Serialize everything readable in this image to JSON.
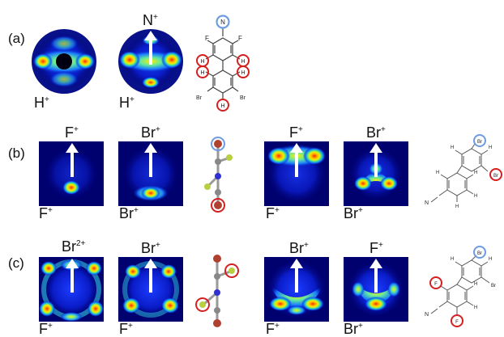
{
  "rows": [
    {
      "label": "(a)",
      "detected": [
        {
          "ion": "H",
          "charge": "+"
        },
        {
          "ion": "H",
          "charge": "+"
        }
      ],
      "reference": [
        {
          "ion": "",
          "charge": ""
        },
        {
          "ion": "N",
          "charge": "+"
        }
      ]
    },
    {
      "label": "(b)",
      "detected": [
        {
          "ion": "F",
          "charge": "+"
        },
        {
          "ion": "Br",
          "charge": "+"
        },
        {
          "ion": "F",
          "charge": "+"
        },
        {
          "ion": "Br",
          "charge": "+"
        }
      ],
      "reference": [
        {
          "ion": "F",
          "charge": "+"
        },
        {
          "ion": "Br",
          "charge": "+"
        },
        {
          "ion": "F",
          "charge": "+"
        },
        {
          "ion": "Br",
          "charge": "+"
        }
      ]
    },
    {
      "label": "(c)",
      "detected": [
        {
          "ion": "F",
          "charge": "+"
        },
        {
          "ion": "F",
          "charge": "+"
        },
        {
          "ion": "F",
          "charge": "+"
        },
        {
          "ion": "Br",
          "charge": "+"
        }
      ],
      "reference": [
        {
          "ion": "Br",
          "charge": "2+"
        },
        {
          "ion": "Br",
          "charge": "+"
        },
        {
          "ion": "Br",
          "charge": "+"
        },
        {
          "ion": "F",
          "charge": "+"
        }
      ]
    }
  ],
  "molecule_a": {
    "atoms": {
      "nitrogen": "N",
      "fluorine": "F",
      "bromine": "Br",
      "hydrogen": "H"
    }
  },
  "molecule_b": {
    "atoms": {
      "bromine": "Br",
      "hydrogen": "H",
      "nitrogen": "N"
    }
  },
  "colors": {
    "highlight_blue": "#6f9be0",
    "highlight_red": "#d42020",
    "background": "#00006e"
  }
}
